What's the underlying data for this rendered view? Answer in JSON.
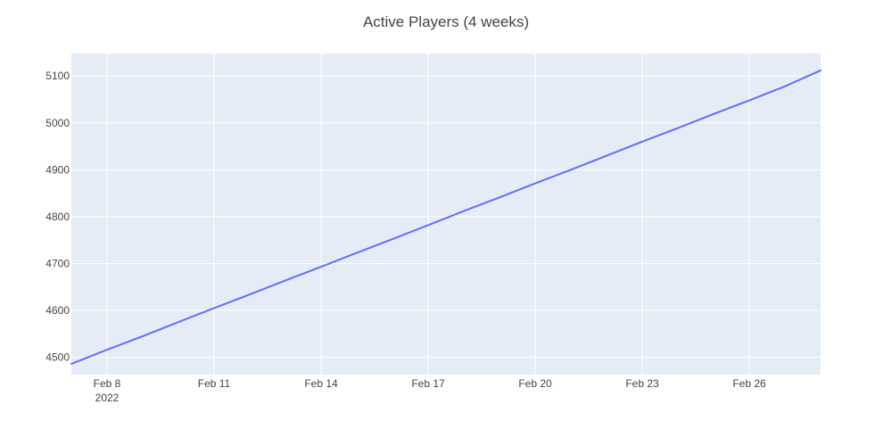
{
  "chart_data": {
    "type": "line",
    "title": "Active Players (4 weeks)",
    "xlabel": "",
    "ylabel": "",
    "x_tick_labels": [
      "Feb 8",
      "Feb 11",
      "Feb 14",
      "Feb 17",
      "Feb 20",
      "Feb 23",
      "Feb 26"
    ],
    "x_year_label": "2022",
    "y_tick_labels": [
      "4500",
      "4600",
      "4700",
      "4800",
      "4900",
      "5000",
      "5100"
    ],
    "x_range": [
      "2022-02-07",
      "2022-02-28"
    ],
    "ylim": [
      4463,
      5148
    ],
    "grid": true,
    "legend": "none",
    "series": [
      {
        "color": "#636efa",
        "points": [
          {
            "x": "2022-02-07",
            "y": 4486
          },
          {
            "x": "2022-02-08",
            "y": 4516
          },
          {
            "x": "2022-02-09",
            "y": 4545
          },
          {
            "x": "2022-02-10",
            "y": 4575
          },
          {
            "x": "2022-02-11",
            "y": 4605
          },
          {
            "x": "2022-02-12",
            "y": 4634
          },
          {
            "x": "2022-02-13",
            "y": 4664
          },
          {
            "x": "2022-02-14",
            "y": 4693
          },
          {
            "x": "2022-02-15",
            "y": 4723
          },
          {
            "x": "2022-02-16",
            "y": 4752
          },
          {
            "x": "2022-02-17",
            "y": 4782
          },
          {
            "x": "2022-02-18",
            "y": 4812
          },
          {
            "x": "2022-02-19",
            "y": 4841
          },
          {
            "x": "2022-02-20",
            "y": 4871
          },
          {
            "x": "2022-02-21",
            "y": 4900
          },
          {
            "x": "2022-02-22",
            "y": 4930
          },
          {
            "x": "2022-02-23",
            "y": 4960
          },
          {
            "x": "2022-02-24",
            "y": 4989
          },
          {
            "x": "2022-02-25",
            "y": 5019
          },
          {
            "x": "2022-02-26",
            "y": 5048
          },
          {
            "x": "2022-02-27",
            "y": 5078
          },
          {
            "x": "2022-02-28",
            "y": 5112
          }
        ]
      }
    ],
    "colors": {
      "plot_background": "#e5ecf6",
      "grid": "#ffffff",
      "text": "#444444"
    }
  }
}
